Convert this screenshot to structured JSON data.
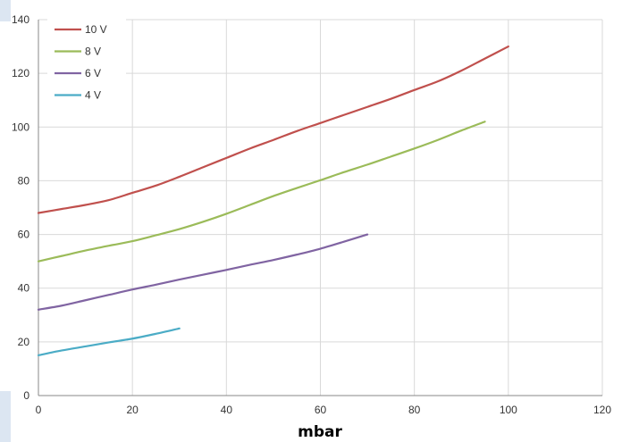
{
  "chart_data": {
    "type": "line",
    "xlabel": "mbar",
    "ylabel": "",
    "xlim": [
      0,
      120
    ],
    "ylim": [
      0,
      140
    ],
    "x_ticks": [
      0,
      20,
      40,
      60,
      80,
      100,
      120
    ],
    "y_ticks": [
      0,
      20,
      40,
      60,
      80,
      100,
      120,
      140
    ],
    "grid": true,
    "legend_position": "top-left",
    "series": [
      {
        "name": "10 V",
        "color": "#c0504d",
        "x": [
          0,
          5,
          10,
          15,
          20,
          25,
          30,
          35,
          40,
          45,
          50,
          55,
          60,
          65,
          70,
          75,
          80,
          85,
          90,
          95,
          100
        ],
        "y": [
          68,
          69.5,
          71,
          72.8,
          75.5,
          78.2,
          81.5,
          85,
          88.5,
          92,
          95.2,
          98.5,
          101.5,
          104.5,
          107.5,
          110.5,
          113.8,
          117,
          121,
          125.5,
          130
        ]
      },
      {
        "name": "8 V",
        "color": "#9bbb59",
        "x": [
          0,
          5,
          10,
          15,
          20,
          25,
          30,
          35,
          40,
          45,
          50,
          55,
          60,
          65,
          70,
          75,
          80,
          85,
          90,
          95
        ],
        "y": [
          50,
          52,
          54,
          55.8,
          57.5,
          59.7,
          62,
          64.7,
          67.7,
          71,
          74.3,
          77.3,
          80.2,
          83.2,
          86,
          89,
          92,
          95.2,
          98.7,
          102
        ]
      },
      {
        "name": "6 V",
        "color": "#8064a2",
        "x": [
          0,
          5,
          10,
          15,
          20,
          25,
          30,
          35,
          40,
          45,
          50,
          55,
          60,
          65,
          70
        ],
        "y": [
          32,
          33.5,
          35.5,
          37.5,
          39.5,
          41.3,
          43.2,
          45,
          46.8,
          48.7,
          50.5,
          52.5,
          54.7,
          57.3,
          60
        ]
      },
      {
        "name": "4 V",
        "color": "#4bacc6",
        "x": [
          0,
          5,
          10,
          15,
          20,
          25,
          30
        ],
        "y": [
          15,
          16.8,
          18.3,
          19.8,
          21.2,
          23,
          25
        ]
      }
    ]
  }
}
